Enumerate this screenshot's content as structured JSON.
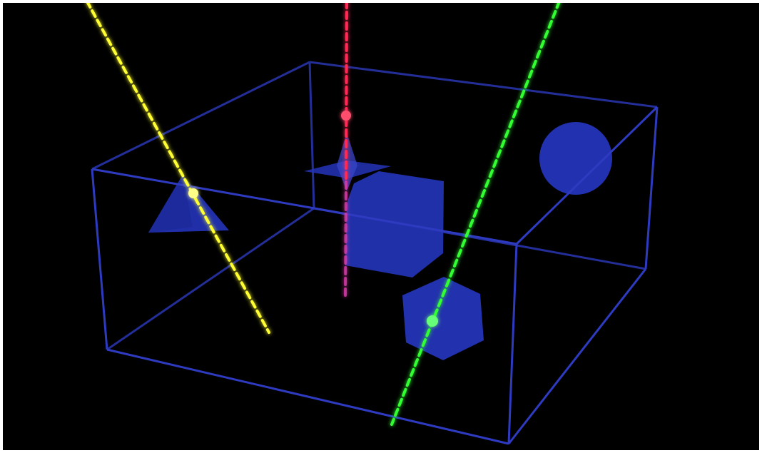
{
  "scene": {
    "background": "#000000",
    "frame": "#ffffff",
    "box_color": "#2b37b8",
    "shape_color": "#2231b0",
    "objects": [
      "triangle",
      "diamond-sprite",
      "cube",
      "sphere",
      "hexagon"
    ],
    "rays": [
      {
        "name": "yellow-ray",
        "color": "#ffff33",
        "dot": "#ffff88"
      },
      {
        "name": "red-ray",
        "color": "#ff2a55",
        "dot": "#ff4d6d"
      },
      {
        "name": "green-ray",
        "color": "#33ff33",
        "dot": "#66ff77"
      }
    ]
  }
}
